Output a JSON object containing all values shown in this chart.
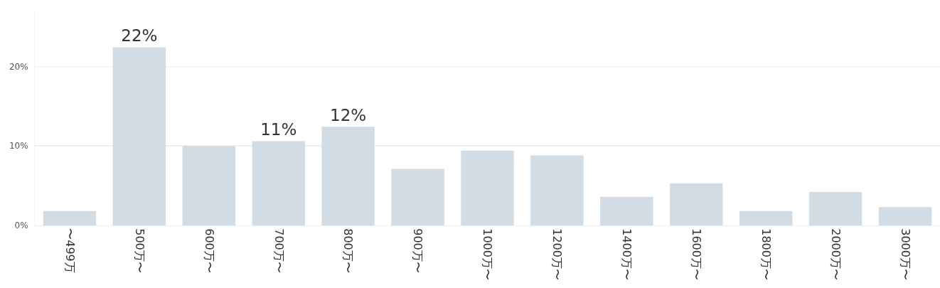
{
  "chart_data": {
    "type": "bar",
    "categories": [
      "〜499万",
      "500万〜",
      "600万〜",
      "700万〜",
      "800万〜",
      "900万〜",
      "1000万〜",
      "1200万〜",
      "1400万〜",
      "1600万〜",
      "1800万〜",
      "2000万〜",
      "3000万〜"
    ],
    "values": [
      1.8,
      22.4,
      10.0,
      10.6,
      12.4,
      7.1,
      9.4,
      8.8,
      3.6,
      5.3,
      1.8,
      4.2,
      2.3
    ],
    "value_labels": [
      null,
      "22%",
      null,
      "11%",
      "12%",
      null,
      null,
      null,
      null,
      null,
      null,
      null,
      null
    ],
    "color": "#d1dce5",
    "ylim": [
      0,
      27
    ],
    "yticks": [
      {
        "value": 0,
        "label": "0%"
      },
      {
        "value": 10,
        "label": "10%"
      },
      {
        "value": 20,
        "label": "20%"
      }
    ],
    "grid": "y"
  }
}
